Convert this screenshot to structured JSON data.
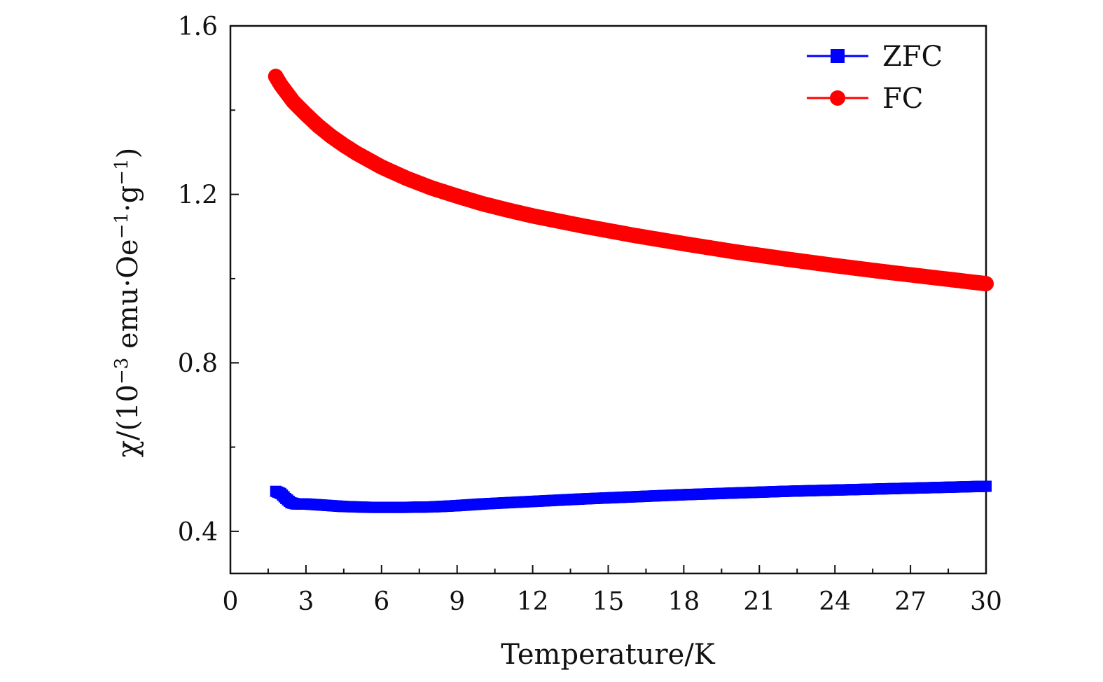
{
  "chart_data": {
    "type": "scatter",
    "title": "",
    "xlabel": "Temperature/K",
    "ylabel_parts": {
      "prefix": "χ/(10",
      "exp1": "−3",
      "mid1": " emu·Oe",
      "exp2": "−1",
      "mid2": "·g",
      "exp3": "−1",
      "suffix": ")"
    },
    "xlim": [
      0,
      30
    ],
    "ylim": [
      0.3,
      1.6
    ],
    "x_ticks": [
      0,
      3,
      6,
      9,
      12,
      15,
      18,
      21,
      24,
      27,
      30
    ],
    "x_tick_labels": [
      "0",
      "3",
      "6",
      "9",
      "12",
      "15",
      "18",
      "21",
      "24",
      "27",
      "30"
    ],
    "x_minor_step": 1.5,
    "y_ticks": [
      0.4,
      0.8,
      1.2,
      1.6
    ],
    "y_tick_labels": [
      "0.4",
      "0.8",
      "1.2",
      "1.6"
    ],
    "y_minor_ticks": [
      0.6,
      1.0,
      1.4
    ],
    "grid": false,
    "legend_position": "top-right",
    "series": [
      {
        "name": "ZFC",
        "color": "#0000ff",
        "marker": "square",
        "x": [
          1.8,
          2.0,
          2.2,
          2.4,
          2.6,
          3.0,
          3.5,
          4.0,
          4.5,
          5.0,
          5.5,
          6.0,
          7.0,
          8.0,
          9.0,
          10.0,
          12.0,
          14.0,
          16.0,
          18.0,
          20.0,
          22.0,
          24.0,
          26.0,
          28.0,
          30.0
        ],
        "y": [
          0.495,
          0.49,
          0.478,
          0.468,
          0.465,
          0.465,
          0.463,
          0.461,
          0.459,
          0.458,
          0.457,
          0.457,
          0.457,
          0.458,
          0.461,
          0.465,
          0.471,
          0.477,
          0.482,
          0.487,
          0.491,
          0.495,
          0.498,
          0.501,
          0.504,
          0.507
        ]
      },
      {
        "name": "FC",
        "color": "#ff0000",
        "marker": "circle",
        "x": [
          1.8,
          2.0,
          2.5,
          3.0,
          3.5,
          4.0,
          4.5,
          5.0,
          6.0,
          7.0,
          8.0,
          9.0,
          10.0,
          11.0,
          12.0,
          14.0,
          16.0,
          18.0,
          20.0,
          22.0,
          24.0,
          26.0,
          28.0,
          30.0
        ],
        "y": [
          1.48,
          1.46,
          1.42,
          1.39,
          1.362,
          1.338,
          1.317,
          1.298,
          1.265,
          1.238,
          1.215,
          1.196,
          1.178,
          1.163,
          1.149,
          1.125,
          1.103,
          1.083,
          1.064,
          1.047,
          1.031,
          1.016,
          1.002,
          0.988
        ]
      }
    ]
  }
}
